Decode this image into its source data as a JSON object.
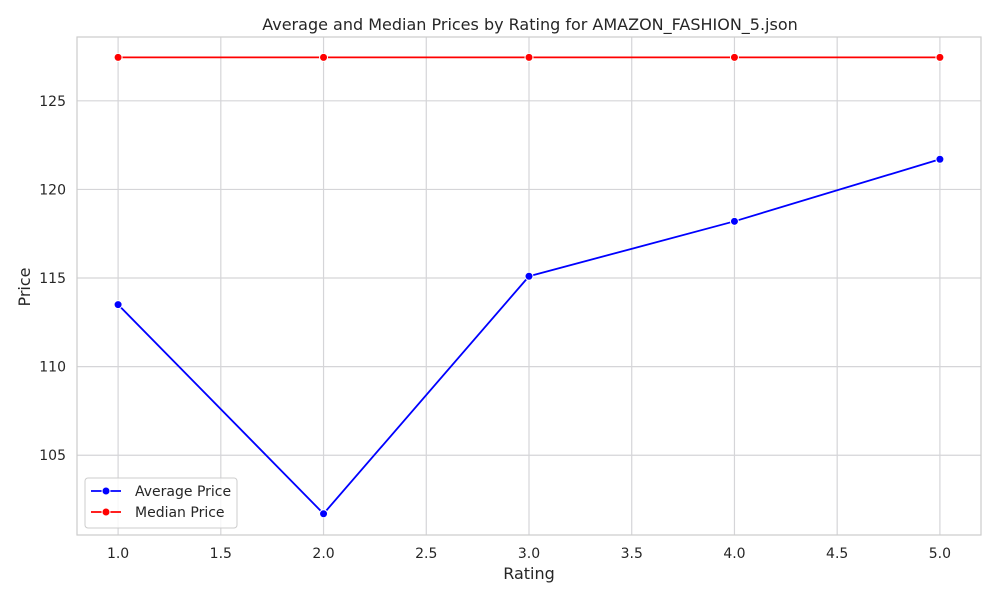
{
  "chart_data": {
    "type": "line",
    "title": "Average and Median Prices by Rating for AMAZON_FASHION_5.json",
    "xlabel": "Rating",
    "ylabel": "Price",
    "xlim": [
      0.8,
      5.2
    ],
    "ylim": [
      100.5,
      128.6
    ],
    "x_ticks": [
      1.0,
      1.5,
      2.0,
      2.5,
      3.0,
      3.5,
      4.0,
      4.5,
      5.0
    ],
    "x_tick_labels": [
      "1.0",
      "1.5",
      "2.0",
      "2.5",
      "3.0",
      "3.5",
      "4.0",
      "4.5",
      "5.0"
    ],
    "y_ticks": [
      105,
      110,
      115,
      120,
      125
    ],
    "y_tick_labels": [
      "105",
      "110",
      "115",
      "120",
      "125"
    ],
    "grid": true,
    "legend_position": "lower-left",
    "series": [
      {
        "name": "Average Price",
        "color": "#0000ff",
        "marker": "circle",
        "x": [
          1.0,
          2.0,
          3.0,
          4.0,
          5.0
        ],
        "values": [
          113.5,
          101.7,
          115.1,
          118.2,
          121.7
        ]
      },
      {
        "name": "Median Price",
        "color": "#ff0000",
        "marker": "circle",
        "x": [
          1.0,
          2.0,
          3.0,
          4.0,
          5.0
        ],
        "values": [
          127.45,
          127.45,
          127.45,
          127.45,
          127.45
        ]
      }
    ],
    "colors": {
      "background": "#ffffff",
      "plot_background": "#ffffff",
      "grid": "#d5d5d8",
      "spine": "#cccccc",
      "text": "#262626"
    }
  }
}
